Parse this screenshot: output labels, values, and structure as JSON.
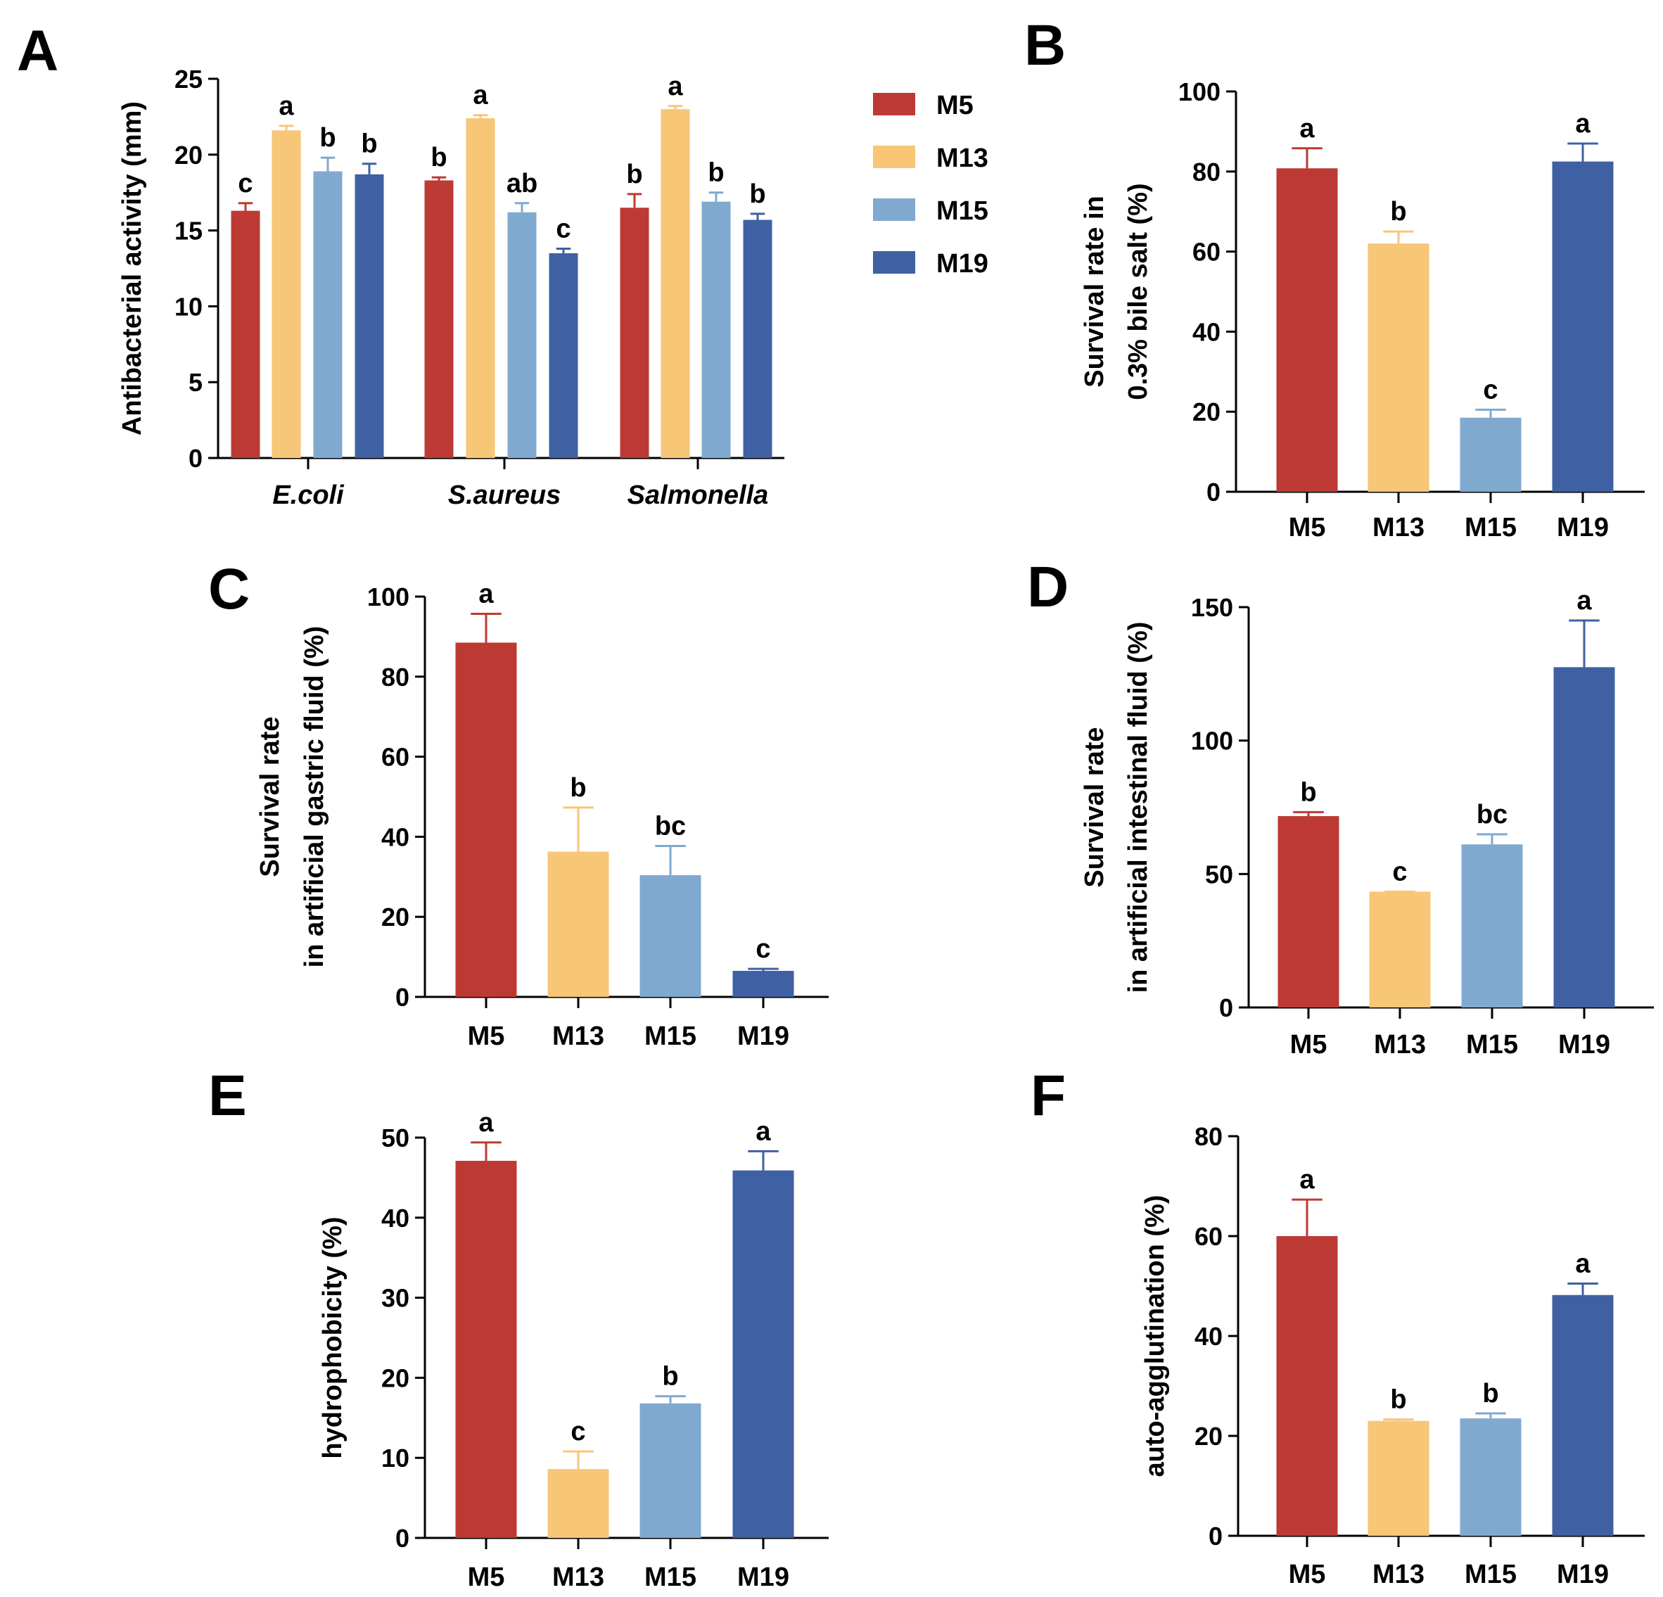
{
  "colors": {
    "M5": "#BD3A34",
    "M13": "#F7C677",
    "M15": "#80A9CF",
    "M19": "#3F60A3"
  },
  "legend": [
    "M5",
    "M13",
    "M15",
    "M19"
  ],
  "chart_data": [
    {
      "id": "A",
      "type": "bar",
      "label": "A",
      "ylabel_lines": [
        "Antibacterial activity (mm)"
      ],
      "ylim": [
        0,
        25
      ],
      "yticks": [
        0,
        5,
        10,
        15,
        20,
        25
      ],
      "categories": [
        "E.coli",
        "S.aureus",
        "Salmonella"
      ],
      "series": [
        {
          "name": "M5",
          "values": [
            16.3,
            18.3,
            16.5
          ],
          "errors": [
            0.5,
            0.2,
            0.9
          ],
          "letters": [
            "c",
            "b",
            "b"
          ]
        },
        {
          "name": "M13",
          "values": [
            21.6,
            22.4,
            23.0
          ],
          "errors": [
            0.3,
            0.2,
            0.2
          ],
          "letters": [
            "a",
            "a",
            "a"
          ]
        },
        {
          "name": "M15",
          "values": [
            18.9,
            16.2,
            16.9
          ],
          "errors": [
            0.9,
            0.6,
            0.6
          ],
          "letters": [
            "b",
            "ab",
            "b"
          ]
        },
        {
          "name": "M19",
          "values": [
            18.7,
            13.5,
            15.7
          ],
          "errors": [
            0.7,
            0.3,
            0.4
          ],
          "letters": [
            "b",
            "c",
            "b"
          ]
        }
      ]
    },
    {
      "id": "B",
      "type": "bar",
      "label": "B",
      "ylabel_lines": [
        "Survival rate in",
        "0.3% bile salt (%)"
      ],
      "ylim": [
        0,
        100
      ],
      "yticks": [
        0,
        20,
        40,
        60,
        80,
        100
      ],
      "categories": [
        "M5",
        "M13",
        "M15",
        "M19"
      ],
      "values": [
        80.8,
        62.0,
        18.5,
        82.5
      ],
      "errors": [
        5.0,
        3.0,
        2.0,
        4.5
      ],
      "letters": [
        "a",
        "b",
        "c",
        "a"
      ]
    },
    {
      "id": "C",
      "type": "bar",
      "label": "C",
      "ylabel_lines": [
        "Survival rate",
        "in artificial gastric fluid (%)"
      ],
      "ylim": [
        0,
        100
      ],
      "yticks": [
        0,
        20,
        40,
        60,
        80,
        100
      ],
      "categories": [
        "M5",
        "M13",
        "M15",
        "M19"
      ],
      "values": [
        88.5,
        36.3,
        30.4,
        6.5
      ],
      "errors": [
        7.2,
        11.0,
        7.3,
        0.5
      ],
      "letters": [
        "a",
        "b",
        "bc",
        "c"
      ]
    },
    {
      "id": "D",
      "type": "bar",
      "label": "D",
      "ylabel_lines": [
        "Survival rate",
        "in artificial intestinal fluid (%)"
      ],
      "ylim": [
        0,
        150
      ],
      "yticks": [
        0,
        50,
        100,
        150
      ],
      "categories": [
        "M5",
        "M13",
        "M15",
        "M19"
      ],
      "values": [
        71.7,
        43.4,
        61.1,
        127.5
      ],
      "errors": [
        1.5,
        0.0,
        3.8,
        17.5
      ],
      "letters": [
        "b",
        "c",
        "bc",
        "a"
      ]
    },
    {
      "id": "E",
      "type": "bar",
      "label": "E",
      "ylabel_lines": [
        "hydrophobicity (%)"
      ],
      "ylim": [
        0,
        50
      ],
      "yticks": [
        0,
        10,
        20,
        30,
        40,
        50
      ],
      "categories": [
        "M5",
        "M13",
        "M15",
        "M19"
      ],
      "values": [
        47.1,
        8.6,
        16.8,
        45.9
      ],
      "errors": [
        2.3,
        2.2,
        0.9,
        2.4
      ],
      "letters": [
        "a",
        "c",
        "b",
        "a"
      ]
    },
    {
      "id": "F",
      "type": "bar",
      "label": "F",
      "ylabel_lines": [
        "auto-agglutination (%)"
      ],
      "ylim": [
        0,
        80
      ],
      "yticks": [
        0,
        20,
        40,
        60,
        80
      ],
      "categories": [
        "M5",
        "M13",
        "M15",
        "M19"
      ],
      "values": [
        60.0,
        23.0,
        23.5,
        48.2
      ],
      "errors": [
        7.3,
        0.3,
        1.0,
        2.3
      ],
      "letters": [
        "a",
        "b",
        "b",
        "a"
      ]
    }
  ]
}
